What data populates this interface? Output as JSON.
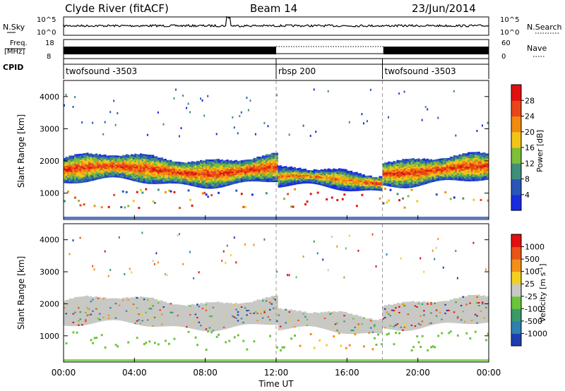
{
  "header": {
    "station": "Clyde River (fitACF)",
    "beam": "Beam 14",
    "date": "23/Jun/2014"
  },
  "noise_panel": {
    "left_label": "N.Sky",
    "right_label": "N.Search",
    "tick_top": "10^5",
    "tick_bottom": "10^0"
  },
  "freq_panel": {
    "left_label_1": "Freq.",
    "left_label_2": "[MHz]",
    "right_label": "Nave",
    "left_ticks": [
      "18",
      "8"
    ],
    "right_ticks": [
      "60",
      "0"
    ]
  },
  "cpid_panel": {
    "label": "CPID",
    "segments": [
      {
        "name": "twofsound -3503",
        "start_hour": 0
      },
      {
        "name": "rbsp 200",
        "start_hour": 12
      },
      {
        "name": "twofsound -3503",
        "start_hour": 18
      }
    ]
  },
  "chart_data": [
    {
      "type": "heatmap",
      "quantity": "Power",
      "ylabel": "Slant Range [km]",
      "ylim": [
        180,
        4500
      ],
      "yticks": [
        1000,
        2000,
        3000,
        4000
      ],
      "xlim_hours": [
        0,
        24
      ],
      "colorbar": {
        "label": "Power [dB]",
        "ticks": [
          "4",
          "8",
          "12",
          "16",
          "20",
          "24",
          "28"
        ],
        "colors": [
          "#1a2ce0",
          "#2a56b8",
          "#3f8f7a",
          "#7dbe3a",
          "#f2c418",
          "#f08a10",
          "#e8461a",
          "#e01010"
        ]
      }
    },
    {
      "type": "heatmap",
      "quantity": "Velocity",
      "ylabel": "Slant Range [km]",
      "ylim": [
        180,
        4500
      ],
      "yticks": [
        1000,
        2000,
        3000,
        4000
      ],
      "xlim_hours": [
        0,
        24
      ],
      "colorbar": {
        "label": "Velocity [m s^-1]",
        "ticks": [
          "1000",
          "500",
          "100",
          "25",
          "-25",
          "-100",
          "-500",
          "-1000"
        ],
        "colors": [
          "#1f3fb0",
          "#2f7fb0",
          "#3a9a6a",
          "#6ac43a",
          "#c8c8c4",
          "#f2d020",
          "#f09018",
          "#e85418",
          "#e01010"
        ]
      }
    }
  ],
  "x_axis": {
    "tick_labels": [
      "00:00",
      "04:00",
      "08:00",
      "12:00",
      "16:00",
      "20:00",
      "00:00"
    ],
    "label": "Time UT"
  }
}
